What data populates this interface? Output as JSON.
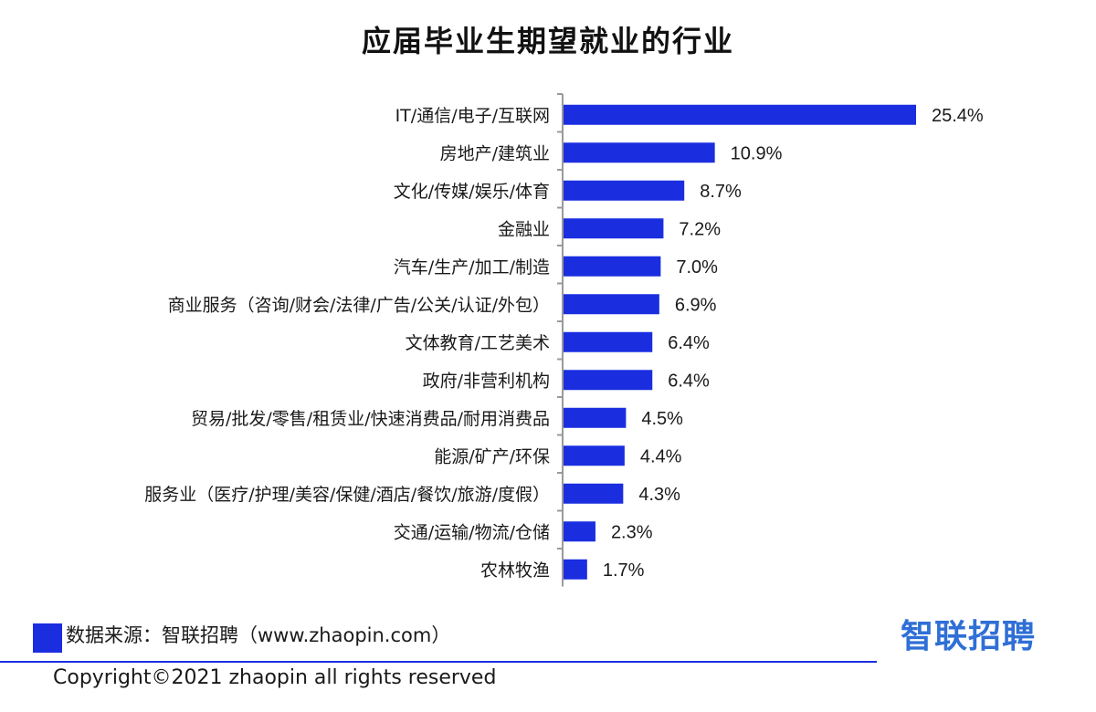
{
  "chart_data": {
    "type": "bar",
    "orientation": "horizontal",
    "title": "应届毕业生期望就业的行业",
    "categories": [
      "IT/通信/电子/互联网",
      "房地产/建筑业",
      "文化/传媒/娱乐/体育",
      "金融业",
      "汽车/生产/加工/制造",
      "商业服务（咨询/财会/法律/广告/公关/认证/外包）",
      "文体教育/工艺美术",
      "政府/非营利机构",
      "贸易/批发/零售/租赁业/快速消费品/耐用消费品",
      "能源/矿产/环保",
      "服务业（医疗/护理/美容/保健/酒店/餐饮/旅游/度假）",
      "交通/运输/物流/仓储",
      "农林牧渔"
    ],
    "values": [
      25.4,
      10.9,
      8.7,
      7.2,
      7.0,
      6.9,
      6.4,
      6.4,
      4.5,
      4.4,
      4.3,
      2.3,
      1.7
    ],
    "value_labels": [
      "25.4%",
      "10.9%",
      "8.7%",
      "7.2%",
      "7.0%",
      "6.9%",
      "6.4%",
      "6.4%",
      "4.5%",
      "4.4%",
      "4.3%",
      "2.3%",
      "1.7%"
    ],
    "xlim": [
      0,
      25.4
    ],
    "grid": false,
    "bar_color": "#1a2ee0"
  },
  "footer": {
    "source": "数据来源：智联招聘（www.zhaopin.com）",
    "brand": "智联招聘",
    "copyright": "Copyright©2021 zhaopin all rights reserved"
  },
  "colors": {
    "accent": "#1a2ee0",
    "brand": "#2f6fd6"
  }
}
